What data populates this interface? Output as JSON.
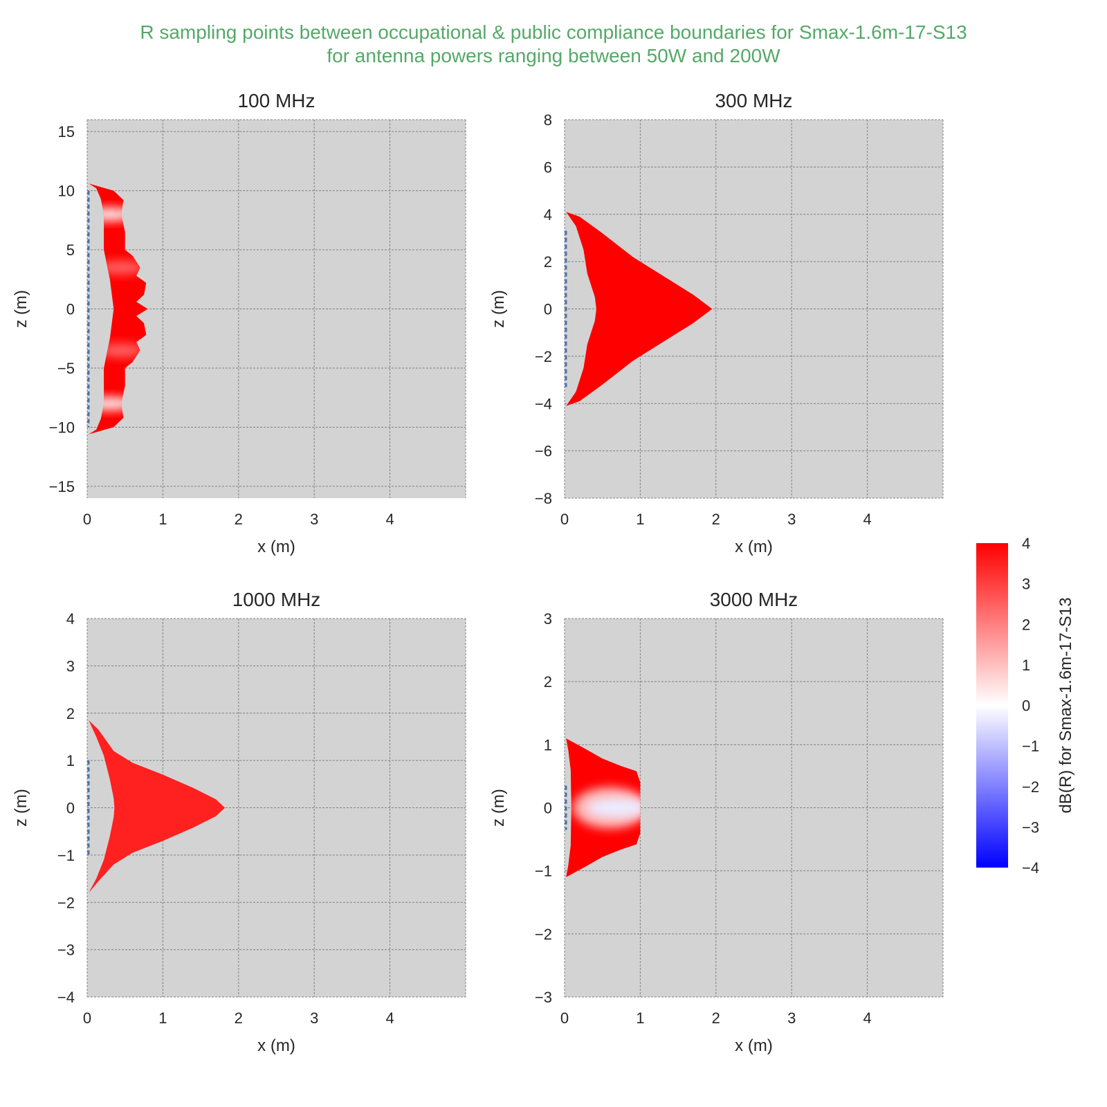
{
  "suptitle": {
    "line1": "R sampling points between occupational & public compliance boundaries for Smax-1.6m-17-S13",
    "line2": "for antenna powers ranging between 50W and 200W",
    "color": "#55a868"
  },
  "style": {
    "plot_background": "#d3d3d3",
    "grid_color": "#808080",
    "grid_style": "dashed",
    "antenna_marker_color": "#4c72b0"
  },
  "colorbar": {
    "label": "dB(R) for Smax-1.6m-17-S13",
    "cmap": "bwr",
    "vmin": -4,
    "vmax": 4,
    "ticks": [
      4,
      3,
      2,
      1,
      0,
      -1,
      -2,
      -3,
      -4
    ],
    "tick_labels": [
      "4",
      "3",
      "2",
      "1",
      "0",
      "−1",
      "−2",
      "−3",
      "−4"
    ]
  },
  "chart_data": [
    {
      "type": "scatter",
      "title": "100 MHz",
      "xlabel": "x (m)",
      "ylabel": "z (m)",
      "xlim": [
        0,
        5
      ],
      "ylim": [
        -16,
        16
      ],
      "xticks": [
        0,
        1,
        2,
        3,
        4
      ],
      "xtick_labels": [
        "0",
        "1",
        "2",
        "3",
        "4"
      ],
      "yticks": [
        15,
        10,
        5,
        0,
        -5,
        -10,
        -15
      ],
      "ytick_labels": [
        "15",
        "10",
        "5",
        "0",
        "−5",
        "−10",
        "−15"
      ],
      "grid": true,
      "antenna_z": [
        -10,
        10
      ],
      "region_inner_edge": [
        [
          0.02,
          10.6
        ],
        [
          0.12,
          10.2
        ],
        [
          0.18,
          9.3
        ],
        [
          0.22,
          8
        ],
        [
          0.22,
          5
        ],
        [
          0.3,
          2.5
        ],
        [
          0.35,
          0
        ],
        [
          0.3,
          -2.5
        ],
        [
          0.22,
          -5
        ],
        [
          0.22,
          -8
        ],
        [
          0.18,
          -9.3
        ],
        [
          0.12,
          -10.2
        ],
        [
          0.02,
          -10.6
        ]
      ],
      "region_outer_edge": [
        [
          0.02,
          10.6
        ],
        [
          0.35,
          10
        ],
        [
          0.48,
          9.2
        ],
        [
          0.45,
          8
        ],
        [
          0.5,
          6.5
        ],
        [
          0.5,
          5
        ],
        [
          0.6,
          4.5
        ],
        [
          0.7,
          3.5
        ],
        [
          0.65,
          2.8
        ],
        [
          0.78,
          2.2
        ],
        [
          0.75,
          1.2
        ],
        [
          0.65,
          0.6
        ],
        [
          0.8,
          0
        ],
        [
          0.65,
          -0.6
        ],
        [
          0.75,
          -1.2
        ],
        [
          0.78,
          -2.2
        ],
        [
          0.65,
          -2.8
        ],
        [
          0.7,
          -3.5
        ],
        [
          0.6,
          -4.5
        ],
        [
          0.5,
          -5
        ],
        [
          0.5,
          -6.5
        ],
        [
          0.45,
          -8
        ],
        [
          0.48,
          -9.2
        ],
        [
          0.35,
          -10
        ],
        [
          0.02,
          -10.6
        ]
      ],
      "dbR_region": 4,
      "low_dbR_zones": [
        {
          "x": 0.3,
          "z": 8,
          "dbR": 0.5
        },
        {
          "x": 0.45,
          "z": 3.5,
          "dbR": 2.5
        },
        {
          "x": 0.45,
          "z": -3.5,
          "dbR": 2.5
        },
        {
          "x": 0.3,
          "z": -8,
          "dbR": 0.5
        }
      ]
    },
    {
      "type": "scatter",
      "title": "300 MHz",
      "xlabel": "x (m)",
      "ylabel": "z (m)",
      "xlim": [
        0,
        5
      ],
      "ylim": [
        -8,
        8
      ],
      "xticks": [
        0,
        1,
        2,
        3,
        4
      ],
      "xtick_labels": [
        "0",
        "1",
        "2",
        "3",
        "4"
      ],
      "yticks": [
        8,
        6,
        4,
        2,
        0,
        -2,
        -4,
        -6,
        -8
      ],
      "ytick_labels": [
        "8",
        "6",
        "4",
        "2",
        "0",
        "−2",
        "−4",
        "−6",
        "−8"
      ],
      "grid": true,
      "antenna_z": [
        -3.3,
        3.3
      ],
      "region_inner_edge": [
        [
          0.02,
          4.1
        ],
        [
          0.15,
          3.5
        ],
        [
          0.25,
          2.5
        ],
        [
          0.3,
          1.5
        ],
        [
          0.4,
          0.5
        ],
        [
          0.42,
          0
        ],
        [
          0.4,
          -0.5
        ],
        [
          0.3,
          -1.5
        ],
        [
          0.25,
          -2.5
        ],
        [
          0.15,
          -3.5
        ],
        [
          0.02,
          -4.1
        ]
      ],
      "region_outer_edge": [
        [
          0.02,
          4.1
        ],
        [
          0.2,
          3.9
        ],
        [
          0.5,
          3.2
        ],
        [
          0.9,
          2.2
        ],
        [
          1.3,
          1.4
        ],
        [
          1.7,
          0.6
        ],
        [
          1.95,
          0
        ],
        [
          1.7,
          -0.6
        ],
        [
          1.3,
          -1.4
        ],
        [
          0.9,
          -2.2
        ],
        [
          0.5,
          -3.2
        ],
        [
          0.2,
          -3.9
        ],
        [
          0.02,
          -4.1
        ]
      ],
      "dbR_region": 4,
      "low_dbR_zones": []
    },
    {
      "type": "scatter",
      "title": "1000 MHz",
      "xlabel": "x (m)",
      "ylabel": "z (m)",
      "xlim": [
        0,
        5
      ],
      "ylim": [
        -4,
        4
      ],
      "xticks": [
        0,
        1,
        2,
        3,
        4
      ],
      "xtick_labels": [
        "0",
        "1",
        "2",
        "3",
        "4"
      ],
      "yticks": [
        4,
        3,
        2,
        1,
        0,
        -1,
        -2,
        -3,
        -4
      ],
      "ytick_labels": [
        "4",
        "3",
        "2",
        "1",
        "0",
        "−1",
        "−2",
        "−3",
        "−4"
      ],
      "grid": true,
      "antenna_z": [
        -1.0,
        1.0
      ],
      "region_inner_edge": [
        [
          0.02,
          1.85
        ],
        [
          0.12,
          1.5
        ],
        [
          0.22,
          1.1
        ],
        [
          0.3,
          0.6
        ],
        [
          0.35,
          0.2
        ],
        [
          0.36,
          0
        ],
        [
          0.35,
          -0.2
        ],
        [
          0.3,
          -0.6
        ],
        [
          0.22,
          -1.1
        ],
        [
          0.12,
          -1.5
        ],
        [
          0.02,
          -1.8
        ]
      ],
      "region_outer_edge": [
        [
          0.02,
          1.85
        ],
        [
          0.15,
          1.65
        ],
        [
          0.35,
          1.2
        ],
        [
          0.6,
          0.95
        ],
        [
          1.0,
          0.7
        ],
        [
          1.4,
          0.42
        ],
        [
          1.7,
          0.18
        ],
        [
          1.82,
          0
        ],
        [
          1.7,
          -0.18
        ],
        [
          1.4,
          -0.42
        ],
        [
          1.0,
          -0.7
        ],
        [
          0.6,
          -0.95
        ],
        [
          0.35,
          -1.2
        ],
        [
          0.15,
          -1.55
        ],
        [
          0.02,
          -1.8
        ]
      ],
      "dbR_region": 3.5,
      "low_dbR_zones": []
    },
    {
      "type": "scatter",
      "title": "3000 MHz",
      "xlabel": "x (m)",
      "ylabel": "z (m)",
      "xlim": [
        0,
        5
      ],
      "ylim": [
        -3,
        3
      ],
      "xticks": [
        0,
        1,
        2,
        3,
        4
      ],
      "xtick_labels": [
        "0",
        "1",
        "2",
        "3",
        "4"
      ],
      "yticks": [
        3,
        2,
        1,
        0,
        -1,
        -2,
        -3
      ],
      "ytick_labels": [
        "3",
        "2",
        "1",
        "0",
        "−1",
        "−2",
        "−3"
      ],
      "grid": true,
      "antenna_z": [
        -0.35,
        0.35
      ],
      "region_inner_edge": [
        [
          0.02,
          1.1
        ],
        [
          0.05,
          0.9
        ],
        [
          0.08,
          0.6
        ],
        [
          0.09,
          0
        ],
        [
          0.08,
          -0.6
        ],
        [
          0.05,
          -0.9
        ],
        [
          0.02,
          -1.1
        ]
      ],
      "region_outer_edge": [
        [
          0.02,
          1.1
        ],
        [
          0.25,
          0.95
        ],
        [
          0.5,
          0.78
        ],
        [
          0.75,
          0.66
        ],
        [
          0.95,
          0.58
        ],
        [
          1.0,
          0.4
        ],
        [
          1.0,
          -0.4
        ],
        [
          0.95,
          -0.58
        ],
        [
          0.75,
          -0.66
        ],
        [
          0.5,
          -0.78
        ],
        [
          0.25,
          -0.95
        ],
        [
          0.02,
          -1.1
        ]
      ],
      "dbR_region": 4,
      "low_dbR_zones": [
        {
          "x_range": [
            0.2,
            1.0
          ],
          "z": 0,
          "dbR": -0.3
        }
      ]
    }
  ]
}
